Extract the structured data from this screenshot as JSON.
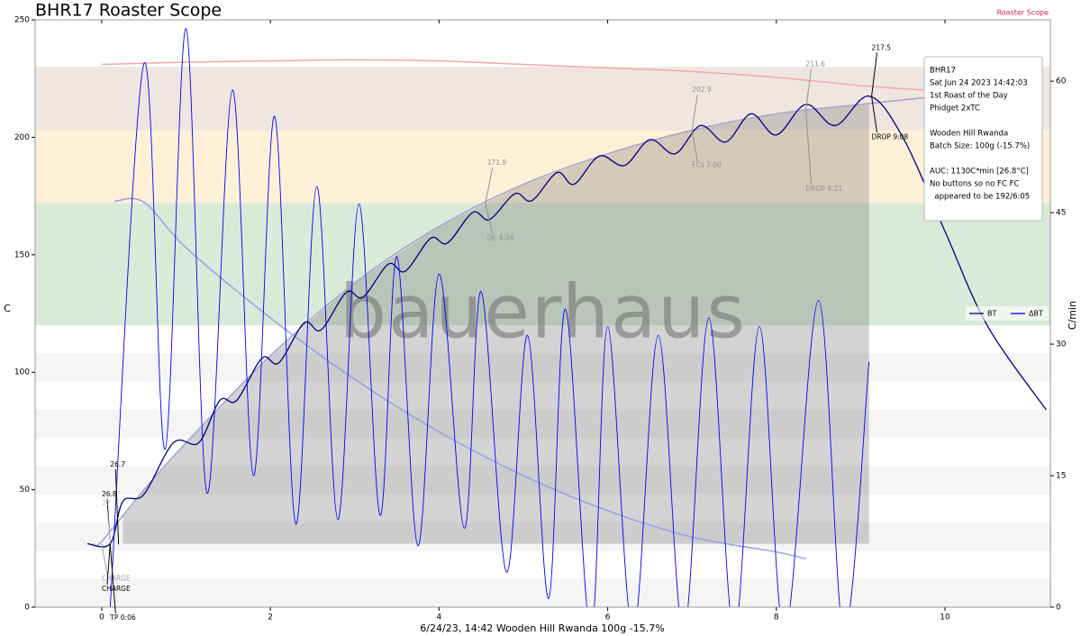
{
  "chart_data": {
    "type": "roast-profile",
    "title": "BHR17 Roaster Scope",
    "brand": "Roaster Scope",
    "watermark": "bauerhaus",
    "xlabel": "6/24/23, 14:42 Wooden Hill Rwanda   100g   -15.7%",
    "ylabel": "C",
    "y2label": "C/min",
    "xlim": [
      -0.79,
      11.25
    ],
    "ylim": [
      0,
      250
    ],
    "y2lim": [
      0,
      67
    ],
    "xticks": [
      0,
      2,
      4,
      6,
      8,
      10
    ],
    "yticks": [
      0,
      50,
      100,
      150,
      200,
      250
    ],
    "y2ticks": [
      0,
      15,
      30,
      45,
      60
    ],
    "legend": "right",
    "bands": [
      {
        "from": 203,
        "to": 230,
        "color": "#f0e6e0"
      },
      {
        "from": 172,
        "to": 203,
        "color": "#fff1d8"
      },
      {
        "from": 120,
        "to": 172,
        "color": "#d9ead8"
      },
      {
        "from": 96,
        "to": 108,
        "color": "#f5f5f5"
      },
      {
        "from": 72,
        "to": 84,
        "color": "#f5f5f5"
      },
      {
        "from": 48,
        "to": 60,
        "color": "#f5f5f5"
      },
      {
        "from": 24,
        "to": 36,
        "color": "#f5f5f5"
      },
      {
        "from": 0,
        "to": 12,
        "color": "#f5f5f5"
      }
    ],
    "shaded_phase": {
      "start": 0.25,
      "end": 9.1,
      "floor": 27,
      "color": "#808080"
    },
    "background_curves": [
      {
        "color": "#f4a9a8",
        "axis": "y",
        "x": [
          0,
          1,
          2,
          3,
          4,
          5,
          6,
          7,
          8,
          9,
          9.8
        ],
        "values": [
          231,
          232,
          232.5,
          233,
          232.5,
          231,
          229.5,
          228,
          225.5,
          222,
          220
        ]
      },
      {
        "color": "#a8a3d0",
        "axis": "y",
        "x": [
          -0.1,
          0,
          0.5,
          1,
          2,
          3,
          4,
          5,
          6,
          7,
          8,
          9,
          9.8
        ],
        "values": [
          27,
          28,
          50,
          70,
          107,
          138,
          162,
          180,
          193,
          203,
          210,
          214,
          217
        ]
      },
      {
        "color": "#9d9de6",
        "axis": "y2",
        "x": [
          0.15,
          0.5,
          1,
          2,
          3,
          4,
          5,
          6,
          7,
          8,
          8.35
        ],
        "values": [
          46.3,
          46.2,
          41,
          33,
          26,
          20,
          15,
          11,
          8,
          6.3,
          5.5
        ]
      }
    ],
    "series": [
      {
        "name": "BT",
        "color": "#00007f",
        "axis": "y",
        "x": [
          -0.17,
          0.1,
          0.25,
          0.5,
          0.85,
          1.15,
          1.4,
          1.6,
          1.9,
          2.1,
          2.4,
          2.6,
          2.9,
          3.1,
          3.4,
          3.6,
          3.9,
          4.1,
          4.4,
          4.6,
          4.9,
          5.1,
          5.4,
          5.6,
          5.9,
          6.2,
          6.5,
          6.8,
          7.1,
          7.4,
          7.7,
          8.0,
          8.35,
          8.7,
          9.1,
          9.5,
          10.0,
          10.5,
          11.2
        ],
        "values": [
          27,
          27,
          45,
          48,
          70,
          70,
          88,
          88,
          106,
          104,
          121,
          118,
          134,
          132,
          146,
          143,
          157,
          155,
          168,
          165,
          176,
          173,
          185,
          180,
          192,
          188,
          199,
          193,
          205,
          198,
          210,
          201,
          214,
          205,
          217.5,
          200,
          160,
          120,
          84
        ]
      },
      {
        "name": "ΔBT",
        "color": "#0000ff",
        "axis": "y2",
        "x": [
          0.1,
          0.5,
          0.75,
          1.0,
          1.25,
          1.55,
          1.8,
          2.05,
          2.3,
          2.55,
          2.8,
          3.05,
          3.3,
          3.5,
          3.75,
          4.0,
          4.3,
          4.5,
          4.8,
          5.05,
          5.3,
          5.5,
          5.8,
          6.0,
          6.3,
          6.6,
          6.9,
          7.2,
          7.5,
          7.8,
          8.1,
          8.5,
          8.8,
          9.1
        ],
        "values": [
          0,
          62,
          18,
          66,
          13,
          59,
          15,
          56,
          9.5,
          48,
          10,
          46,
          10.5,
          40,
          7,
          38,
          9,
          36,
          4,
          31,
          1,
          34,
          -3,
          32,
          -3,
          31,
          -3,
          33,
          -3,
          32,
          -3,
          35,
          -3,
          28
        ]
      }
    ],
    "annotations": [
      {
        "text": "26.7",
        "color": "#000000",
        "x": 0.2,
        "y": 26.7,
        "tx": 0.1,
        "ty": 60.6
      },
      {
        "text": "26.8",
        "color": "#000000",
        "x": 0.1,
        "y": 26.8,
        "tx": 0.0,
        "ty": 48
      },
      {
        "text": "27",
        "color": "#c8c8c8",
        "x": 0.1,
        "y": 27,
        "tx": 0.0,
        "ty": 44
      },
      {
        "text": "CHARGE",
        "color": "#a0a0a0",
        "x": 0.0,
        "y": 27,
        "tx": 0.0,
        "ty": 12
      },
      {
        "text": "CHARGE",
        "color": "#000000",
        "x": 0.1,
        "y": 26.8,
        "tx": 0.0,
        "ty": 7.7
      },
      {
        "text": "TP 0:06",
        "color": "#000000",
        "x": 0.1,
        "y": 26.7,
        "tx": 0.1,
        "ty": -4.6
      },
      {
        "text": "171.9",
        "color": "#909090",
        "x": 4.55,
        "y": 171.9,
        "tx": 4.57,
        "ty": 189
      },
      {
        "text": "DE 4:34",
        "color": "#909090",
        "x": 4.55,
        "y": 171.9,
        "tx": 4.57,
        "ty": 157
      },
      {
        "text": "202.9",
        "color": "#909090",
        "x": 7.0,
        "y": 202.9,
        "tx": 7.0,
        "ty": 220
      },
      {
        "text": "FCs 7:00",
        "color": "#909090",
        "x": 7.0,
        "y": 202.9,
        "tx": 7.0,
        "ty": 188
      },
      {
        "text": "211.6",
        "color": "#909090",
        "x": 8.35,
        "y": 211.6,
        "tx": 8.35,
        "ty": 231
      },
      {
        "text": "DROP 8:21",
        "color": "#909090",
        "x": 8.35,
        "y": 211.6,
        "tx": 8.35,
        "ty": 178
      },
      {
        "text": "217.5",
        "color": "#000000",
        "x": 9.13,
        "y": 217.5,
        "tx": 9.13,
        "ty": 238
      },
      {
        "text": "DROP 9:08",
        "color": "#000000",
        "x": 9.13,
        "y": 217.5,
        "tx": 9.13,
        "ty": 200
      }
    ],
    "info_box": [
      [
        "BHR17",
        "Sat Jun 24 2023 14:42:03",
        "1st Roast of the Day",
        "Phidget 2xTC"
      ],
      [
        "Wooden Hill Rwanda",
        "Batch Size: 100g (-15.7%)"
      ],
      [
        "AUC: 1130C*min [26.8°C]",
        "No buttons so no FC FC",
        "  appeared to be 192/6:05"
      ]
    ]
  }
}
